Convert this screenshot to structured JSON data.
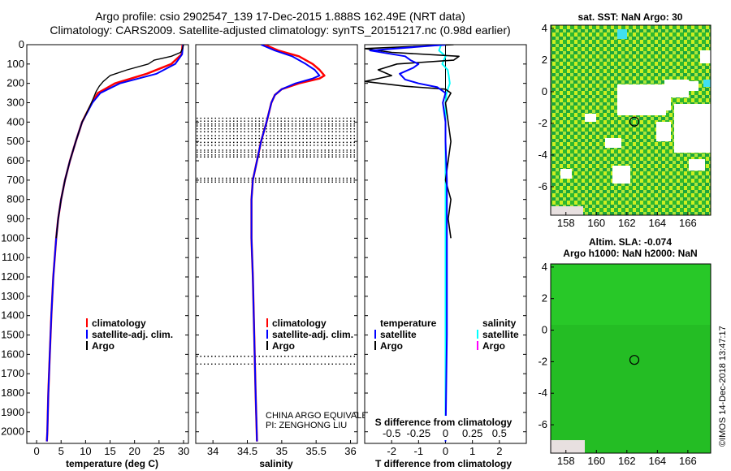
{
  "header": {
    "line1": "Argo profile: csio 2902547_139 17-Dec-2015 1.888S 162.49E (NRT data)",
    "line2": "Climatology: CARS2009. Satellite-adjusted climatology: synTS_20151217.nc (0.98d earlier)"
  },
  "colors": {
    "climatology": "#ff0000",
    "satellite": "#0000ff",
    "argo": "#000000",
    "sal_satellite": "#00ffff",
    "sal_argo": "#ff00ff"
  },
  "chart_data": [
    {
      "type": "line",
      "id": "temperature",
      "xlabel": "temperature (deg C)",
      "xlim": [
        -2,
        31
      ],
      "xticks": [
        "0",
        "5",
        "10",
        "15",
        "20",
        "25",
        "30"
      ],
      "ylim": [
        0,
        2060
      ],
      "yticks": [
        "0",
        "100",
        "200",
        "300",
        "400",
        "500",
        "600",
        "700",
        "800",
        "900",
        "1000",
        "1100",
        "1200",
        "1300",
        "1400",
        "1500",
        "1600",
        "1700",
        "1800",
        "1900",
        "2000"
      ],
      "legend": [
        "climatology",
        "satellite-adj. clim.",
        "Argo"
      ],
      "series": [
        {
          "name": "climatology",
          "depth": [
            0,
            50,
            100,
            150,
            200,
            250,
            300,
            400,
            500,
            600,
            700,
            800,
            900,
            1000,
            1200,
            1400,
            1600,
            1800,
            2000,
            2050
          ],
          "values": [
            29.8,
            29.6,
            27.5,
            22.5,
            16.0,
            12.5,
            11.3,
            9.3,
            8.0,
            6.8,
            5.8,
            5.0,
            4.4,
            4.0,
            3.4,
            3.0,
            2.7,
            2.4,
            2.2,
            2.1
          ]
        },
        {
          "name": "satellite-adj. clim.",
          "depth": [
            0,
            50,
            100,
            150,
            200,
            250,
            300,
            400,
            500,
            600,
            700,
            800,
            900,
            1000,
            1200,
            1400,
            1600,
            1800,
            2000,
            2050
          ],
          "values": [
            29.9,
            29.7,
            28.3,
            24.5,
            17.0,
            13.0,
            11.4,
            9.3,
            8.0,
            6.8,
            5.8,
            5.0,
            4.4,
            4.0,
            3.4,
            3.0,
            2.7,
            2.4,
            2.2,
            2.1
          ]
        },
        {
          "name": "Argo",
          "depth": [
            0,
            20,
            40,
            60,
            80,
            100,
            130,
            160,
            190,
            215,
            240,
            270,
            300,
            400,
            500,
            600,
            700,
            800,
            900,
            1000
          ],
          "values": [
            30.0,
            29.8,
            29.4,
            27.5,
            24.0,
            22.8,
            18.5,
            15.0,
            13.6,
            12.8,
            12.2,
            11.7,
            11.2,
            9.3,
            8.0,
            6.8,
            5.8,
            5.0,
            4.4,
            4.0
          ]
        }
      ]
    },
    {
      "type": "line",
      "id": "salinity",
      "xlabel": "salinity",
      "xlim": [
        33.75,
        36.1
      ],
      "xticks": [
        "34",
        "34.5",
        "35",
        "35.5",
        "36"
      ],
      "ylim": [
        0,
        2060
      ],
      "legend": [
        "climatology",
        "satellite-adj. clim.",
        "Argo"
      ],
      "annotation": [
        "CHINA ARGO EQUIVALENT",
        "PI: ZENGHONG LIU"
      ],
      "series": [
        {
          "name": "climatology",
          "depth": [
            0,
            30,
            60,
            100,
            130,
            160,
            175,
            200,
            230,
            260,
            300,
            400,
            500,
            600,
            700,
            800,
            1000,
            1200,
            1500,
            1800,
            2050
          ],
          "values": [
            34.75,
            34.95,
            35.25,
            35.45,
            35.55,
            35.62,
            35.55,
            35.25,
            35.0,
            34.9,
            34.85,
            34.78,
            34.7,
            34.64,
            34.58,
            34.56,
            34.56,
            34.58,
            34.6,
            34.62,
            34.64
          ]
        },
        {
          "name": "satellite-adj. clim.",
          "depth": [
            0,
            30,
            60,
            100,
            130,
            160,
            175,
            200,
            230,
            260,
            300,
            400,
            500,
            600,
            700,
            800,
            1000,
            1200,
            1500,
            1800,
            2050
          ],
          "values": [
            34.7,
            34.9,
            35.15,
            35.35,
            35.48,
            35.55,
            35.45,
            35.2,
            35.0,
            34.9,
            34.85,
            34.78,
            34.7,
            34.64,
            34.58,
            34.56,
            34.56,
            34.58,
            34.6,
            34.62,
            34.64
          ]
        }
      ]
    },
    {
      "type": "line",
      "id": "difference",
      "xlabel": "T difference from climatology",
      "xlabel_top": "S difference from climatology",
      "xlim": [
        -3,
        3
      ],
      "xticks": [
        "-2",
        "-1",
        "0",
        "1",
        "2"
      ],
      "xticks_top": [
        "-0.5",
        "-0.25",
        "0",
        "0.25",
        "0.5"
      ],
      "legend_left": [
        "temperature",
        "satellite",
        "Argo"
      ],
      "legend_right": [
        "salinity",
        "satellite",
        "Argo"
      ],
      "series": [
        {
          "name": "T satellite",
          "depth": [
            0,
            30,
            60,
            80,
            100,
            120,
            150,
            180,
            200,
            220,
            250,
            300,
            400,
            500,
            700,
            1000,
            1500,
            2050
          ],
          "values": [
            0.0,
            -2.8,
            -1.5,
            -1.3,
            -1.0,
            -1.2,
            -1.7,
            -1.5,
            -1.0,
            -0.3,
            0.0,
            -0.1,
            0.0,
            0.0,
            0.05,
            0.05,
            0.05,
            0.0
          ]
        },
        {
          "name": "T Argo",
          "depth": [
            0,
            20,
            40,
            60,
            80,
            100,
            130,
            160,
            190,
            215,
            230,
            250,
            300,
            400,
            500,
            600,
            700,
            800,
            900,
            1000
          ],
          "values": [
            0.3,
            -3.0,
            -2.0,
            0.5,
            0.3,
            -1.8,
            -2.5,
            -2.0,
            -3.0,
            -1.5,
            0.0,
            0.2,
            0.0,
            0.1,
            0.2,
            0.1,
            0.0,
            0.2,
            0.1,
            0.2
          ]
        },
        {
          "name": "S satellite",
          "depth": [
            0,
            30,
            60,
            100,
            130,
            160,
            200,
            250,
            300,
            500,
            800,
            1200,
            1600,
            2050
          ],
          "values": [
            -0.04,
            -0.06,
            0.0,
            -0.03,
            0.02,
            0.03,
            0.04,
            0.01,
            0.0,
            0.0,
            0.0,
            0.0,
            0.0,
            0.0
          ]
        }
      ]
    },
    {
      "type": "heatmap",
      "id": "sst_map",
      "title": "sat. SST: NaN Argo: 30",
      "xticks": [
        "158",
        "160",
        "162",
        "164",
        "166"
      ],
      "yticks": [
        "4",
        "2",
        "0",
        "-2",
        "-4",
        "-6"
      ],
      "marker": {
        "lon": 162.49,
        "lat": -1.888
      }
    },
    {
      "type": "heatmap",
      "id": "sla_map",
      "title": "Altim. SLA: -0.074",
      "subtitle": "Argo h1000: NaN h2000: NaN",
      "xticks": [
        "158",
        "160",
        "162",
        "164",
        "166"
      ],
      "yticks": [
        "4",
        "2",
        "0",
        "-2",
        "-4",
        "-6"
      ],
      "marker": {
        "lon": 162.49,
        "lat": -1.888
      }
    }
  ],
  "footer": {
    "stamp": "©IMOS 14-Dec-2018 13:47:17"
  }
}
